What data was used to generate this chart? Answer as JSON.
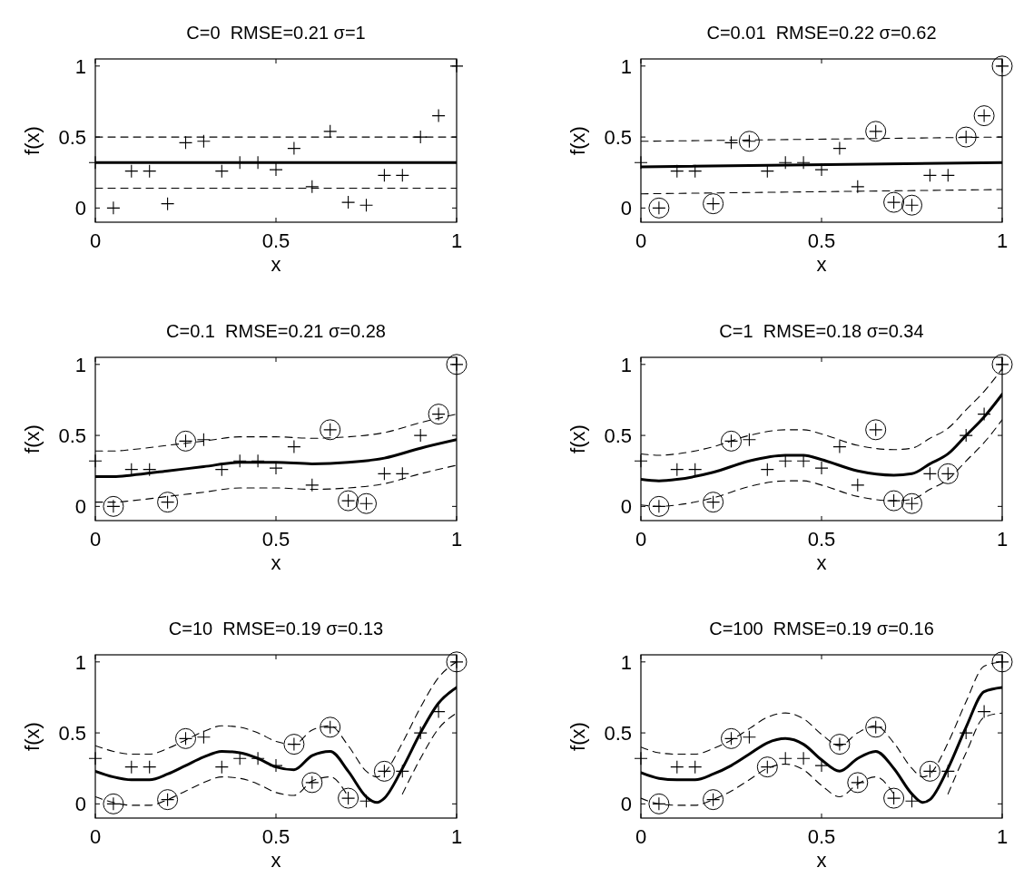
{
  "chart_data": [
    {
      "type": "line",
      "title": "C=0  RMSE=0.21 σ=1",
      "xlabel": "x",
      "ylabel": "f(x)",
      "xlim": [
        0,
        1
      ],
      "ylim": [
        -0.1,
        1.05
      ],
      "xticks": [
        0,
        0.5,
        1
      ],
      "yticks": [
        0,
        0.5,
        1
      ],
      "series": [
        {
          "type": "scatter",
          "marker": "cross",
          "color": "#000000",
          "x": [
            0,
            0.05,
            0.1,
            0.15,
            0.2,
            0.25,
            0.3,
            0.35,
            0.4,
            0.45,
            0.5,
            0.55,
            0.6,
            0.65,
            0.7,
            0.75,
            0.8,
            0.85,
            0.9,
            0.95,
            1
          ],
          "values": [
            0.32,
            0.0,
            0.26,
            0.26,
            0.03,
            0.46,
            0.47,
            0.26,
            0.32,
            0.32,
            0.27,
            0.42,
            0.15,
            0.54,
            0.04,
            0.02,
            0.23,
            0.23,
            0.5,
            0.65,
            1.0
          ]
        },
        {
          "type": "line",
          "line_style": "solid",
          "color": "#000000",
          "x": [
            0,
            1
          ],
          "values": [
            0.32,
            0.32
          ]
        },
        {
          "type": "line",
          "line_style": "dashed",
          "color": "#000000",
          "x": [
            0,
            1
          ],
          "values": [
            0.5,
            0.5
          ]
        },
        {
          "type": "line",
          "line_style": "dashed",
          "color": "#000000",
          "x": [
            0,
            1
          ],
          "values": [
            0.14,
            0.14
          ]
        }
      ]
    },
    {
      "type": "line",
      "title": "C=0.01  RMSE=0.22 σ=0.62",
      "xlabel": "x",
      "ylabel": "f(x)",
      "xlim": [
        0,
        1
      ],
      "ylim": [
        -0.1,
        1.05
      ],
      "xticks": [
        0,
        0.5,
        1
      ],
      "yticks": [
        0,
        0.5,
        1
      ],
      "series": [
        {
          "type": "scatter",
          "marker": "cross",
          "color": "#000000",
          "x": [
            0,
            0.05,
            0.1,
            0.15,
            0.2,
            0.25,
            0.3,
            0.35,
            0.4,
            0.45,
            0.5,
            0.55,
            0.6,
            0.65,
            0.7,
            0.75,
            0.8,
            0.85,
            0.9,
            0.95,
            1
          ],
          "values": [
            0.32,
            0.0,
            0.26,
            0.26,
            0.03,
            0.46,
            0.47,
            0.26,
            0.32,
            0.32,
            0.27,
            0.42,
            0.15,
            0.54,
            0.04,
            0.02,
            0.23,
            0.23,
            0.5,
            0.65,
            1.0
          ]
        },
        {
          "type": "scatter",
          "marker": "circle",
          "color": "#000000",
          "x": [
            0.05,
            0.2,
            0.3,
            0.65,
            0.7,
            0.75,
            0.9,
            0.95,
            1
          ],
          "values": [
            0.0,
            0.03,
            0.47,
            0.54,
            0.04,
            0.02,
            0.5,
            0.65,
            1.0
          ]
        },
        {
          "type": "line",
          "line_style": "solid",
          "color": "#000000",
          "x": [
            0,
            1
          ],
          "values": [
            0.29,
            0.32
          ]
        },
        {
          "type": "line",
          "line_style": "dashed",
          "color": "#000000",
          "x": [
            0,
            1
          ],
          "values": [
            0.47,
            0.5
          ]
        },
        {
          "type": "line",
          "line_style": "dashed",
          "color": "#000000",
          "x": [
            0,
            1
          ],
          "values": [
            0.1,
            0.13
          ]
        }
      ]
    },
    {
      "type": "line",
      "title": "C=0.1  RMSE=0.21 σ=0.28",
      "xlabel": "x",
      "ylabel": "f(x)",
      "xlim": [
        0,
        1
      ],
      "ylim": [
        -0.1,
        1.05
      ],
      "xticks": [
        0,
        0.5,
        1
      ],
      "yticks": [
        0,
        0.5,
        1
      ],
      "series": [
        {
          "type": "scatter",
          "marker": "cross",
          "color": "#000000",
          "x": [
            0,
            0.05,
            0.1,
            0.15,
            0.2,
            0.25,
            0.3,
            0.35,
            0.4,
            0.45,
            0.5,
            0.55,
            0.6,
            0.65,
            0.7,
            0.75,
            0.8,
            0.85,
            0.9,
            0.95,
            1
          ],
          "values": [
            0.32,
            0.0,
            0.26,
            0.26,
            0.03,
            0.46,
            0.47,
            0.26,
            0.32,
            0.32,
            0.27,
            0.42,
            0.15,
            0.54,
            0.04,
            0.02,
            0.23,
            0.23,
            0.5,
            0.65,
            1.0
          ]
        },
        {
          "type": "scatter",
          "marker": "circle",
          "color": "#000000",
          "x": [
            0.05,
            0.2,
            0.25,
            0.65,
            0.7,
            0.75,
            0.95,
            1
          ],
          "values": [
            0.0,
            0.03,
            0.46,
            0.54,
            0.04,
            0.02,
            0.65,
            1.0
          ]
        },
        {
          "type": "line",
          "line_style": "solid",
          "color": "#000000",
          "x": [
            0,
            0.05,
            0.1,
            0.2,
            0.3,
            0.4,
            0.5,
            0.6,
            0.7,
            0.8,
            0.9,
            1
          ],
          "values": [
            0.21,
            0.21,
            0.22,
            0.25,
            0.28,
            0.31,
            0.31,
            0.3,
            0.31,
            0.34,
            0.41,
            0.47
          ]
        },
        {
          "type": "line",
          "line_style": "dashed",
          "color": "#000000",
          "x": [
            0,
            0.05,
            0.1,
            0.2,
            0.3,
            0.4,
            0.5,
            0.6,
            0.7,
            0.8,
            0.9,
            1
          ],
          "values": [
            0.39,
            0.39,
            0.4,
            0.43,
            0.46,
            0.49,
            0.49,
            0.48,
            0.49,
            0.52,
            0.59,
            0.65
          ]
        },
        {
          "type": "line",
          "line_style": "dashed",
          "color": "#000000",
          "x": [
            0,
            0.05,
            0.1,
            0.2,
            0.3,
            0.4,
            0.5,
            0.6,
            0.7,
            0.8,
            0.9,
            1
          ],
          "values": [
            0.03,
            0.03,
            0.04,
            0.07,
            0.1,
            0.13,
            0.13,
            0.12,
            0.13,
            0.16,
            0.23,
            0.29
          ]
        }
      ]
    },
    {
      "type": "line",
      "title": "C=1  RMSE=0.18 σ=0.34",
      "xlabel": "x",
      "ylabel": "f(x)",
      "xlim": [
        0,
        1
      ],
      "ylim": [
        -0.1,
        1.05
      ],
      "xticks": [
        0,
        0.5,
        1
      ],
      "yticks": [
        0,
        0.5,
        1
      ],
      "series": [
        {
          "type": "scatter",
          "marker": "cross",
          "color": "#000000",
          "x": [
            0,
            0.05,
            0.1,
            0.15,
            0.2,
            0.25,
            0.3,
            0.35,
            0.4,
            0.45,
            0.5,
            0.55,
            0.6,
            0.65,
            0.7,
            0.75,
            0.8,
            0.85,
            0.9,
            0.95,
            1
          ],
          "values": [
            0.32,
            0.0,
            0.26,
            0.26,
            0.03,
            0.46,
            0.47,
            0.26,
            0.32,
            0.32,
            0.27,
            0.42,
            0.15,
            0.54,
            0.04,
            0.02,
            0.23,
            0.23,
            0.5,
            0.65,
            1.0
          ]
        },
        {
          "type": "scatter",
          "marker": "circle",
          "color": "#000000",
          "x": [
            0.05,
            0.2,
            0.25,
            0.65,
            0.7,
            0.75,
            0.85,
            1
          ],
          "values": [
            0.0,
            0.03,
            0.46,
            0.54,
            0.04,
            0.02,
            0.23,
            1.0
          ]
        },
        {
          "type": "line",
          "line_style": "solid",
          "color": "#000000",
          "x": [
            0,
            0.05,
            0.1,
            0.2,
            0.3,
            0.4,
            0.45,
            0.5,
            0.6,
            0.7,
            0.75,
            0.8,
            0.85,
            0.9,
            0.95,
            1
          ],
          "values": [
            0.19,
            0.18,
            0.19,
            0.24,
            0.32,
            0.36,
            0.36,
            0.33,
            0.25,
            0.22,
            0.23,
            0.3,
            0.37,
            0.5,
            0.63,
            0.79
          ]
        },
        {
          "type": "line",
          "line_style": "dashed",
          "color": "#000000",
          "x": [
            0,
            0.05,
            0.1,
            0.2,
            0.3,
            0.4,
            0.45,
            0.5,
            0.6,
            0.7,
            0.75,
            0.8,
            0.85,
            0.9,
            0.95,
            1
          ],
          "values": [
            0.37,
            0.36,
            0.37,
            0.42,
            0.5,
            0.54,
            0.54,
            0.51,
            0.43,
            0.4,
            0.41,
            0.48,
            0.55,
            0.68,
            0.81,
            0.97
          ]
        },
        {
          "type": "line",
          "line_style": "dashed",
          "color": "#000000",
          "x": [
            0,
            0.05,
            0.1,
            0.2,
            0.3,
            0.4,
            0.45,
            0.5,
            0.6,
            0.7,
            0.75,
            0.8,
            0.85,
            0.9,
            0.95,
            1
          ],
          "values": [
            0.01,
            0.0,
            0.01,
            0.06,
            0.14,
            0.18,
            0.18,
            0.15,
            0.07,
            0.04,
            0.05,
            0.12,
            0.19,
            0.32,
            0.45,
            0.61
          ]
        }
      ]
    },
    {
      "type": "line",
      "title": "C=10  RMSE=0.19 σ=0.13",
      "xlabel": "x",
      "ylabel": "f(x)",
      "xlim": [
        0,
        1
      ],
      "ylim": [
        -0.1,
        1.05
      ],
      "xticks": [
        0,
        0.5,
        1
      ],
      "yticks": [
        0,
        0.5,
        1
      ],
      "series": [
        {
          "type": "scatter",
          "marker": "cross",
          "color": "#000000",
          "x": [
            0,
            0.05,
            0.1,
            0.15,
            0.2,
            0.25,
            0.3,
            0.35,
            0.4,
            0.45,
            0.5,
            0.55,
            0.6,
            0.65,
            0.7,
            0.75,
            0.8,
            0.85,
            0.9,
            0.95,
            1
          ],
          "values": [
            0.32,
            0.0,
            0.26,
            0.26,
            0.03,
            0.46,
            0.47,
            0.26,
            0.32,
            0.32,
            0.27,
            0.42,
            0.15,
            0.54,
            0.04,
            0.02,
            0.23,
            0.23,
            0.5,
            0.65,
            1.0
          ]
        },
        {
          "type": "scatter",
          "marker": "circle",
          "color": "#000000",
          "x": [
            0.05,
            0.2,
            0.25,
            0.55,
            0.6,
            0.65,
            0.7,
            0.8,
            1
          ],
          "values": [
            0.0,
            0.03,
            0.46,
            0.42,
            0.15,
            0.54,
            0.04,
            0.23,
            1.0
          ]
        },
        {
          "type": "line",
          "line_style": "solid",
          "color": "#000000",
          "x": [
            0,
            0.05,
            0.1,
            0.15,
            0.2,
            0.25,
            0.3,
            0.35,
            0.4,
            0.45,
            0.5,
            0.55,
            0.6,
            0.65,
            0.7,
            0.75,
            0.78,
            0.8,
            0.85,
            0.9,
            0.95,
            1
          ],
          "values": [
            0.23,
            0.19,
            0.17,
            0.17,
            0.21,
            0.27,
            0.33,
            0.37,
            0.36,
            0.32,
            0.26,
            0.24,
            0.34,
            0.37,
            0.23,
            0.05,
            0.01,
            0.04,
            0.25,
            0.5,
            0.71,
            0.82
          ]
        },
        {
          "type": "line",
          "line_style": "dashed",
          "color": "#000000",
          "x": [
            0,
            0.05,
            0.1,
            0.15,
            0.2,
            0.25,
            0.3,
            0.35,
            0.4,
            0.45,
            0.5,
            0.55,
            0.6,
            0.65,
            0.7,
            0.75,
            0.78,
            0.8,
            0.85,
            0.9,
            0.95,
            1
          ],
          "values": [
            0.41,
            0.37,
            0.35,
            0.35,
            0.39,
            0.45,
            0.51,
            0.55,
            0.54,
            0.5,
            0.44,
            0.42,
            0.52,
            0.55,
            0.41,
            0.23,
            0.19,
            0.22,
            0.43,
            0.68,
            0.89,
            1.0
          ]
        },
        {
          "type": "line",
          "line_style": "dashed",
          "color": "#000000",
          "x": [
            0,
            0.05,
            0.1,
            0.15,
            0.2,
            0.25,
            0.3,
            0.35,
            0.4,
            0.45,
            0.5,
            0.55,
            0.6,
            0.65,
            0.7,
            0.75,
            0.78,
            0.8,
            0.85,
            0.9,
            0.95,
            1
          ],
          "values": [
            0.05,
            0.01,
            -0.01,
            -0.01,
            0.03,
            0.09,
            0.15,
            0.19,
            0.18,
            0.14,
            0.08,
            0.06,
            0.16,
            0.19,
            0.05,
            null,
            null,
            null,
            0.07,
            0.32,
            0.53,
            0.64
          ]
        }
      ]
    },
    {
      "type": "line",
      "title": "C=100  RMSE=0.19 σ=0.16",
      "xlabel": "x",
      "ylabel": "f(x)",
      "xlim": [
        0,
        1
      ],
      "ylim": [
        -0.1,
        1.05
      ],
      "xticks": [
        0,
        0.5,
        1
      ],
      "yticks": [
        0,
        0.5,
        1
      ],
      "series": [
        {
          "type": "scatter",
          "marker": "cross",
          "color": "#000000",
          "x": [
            0,
            0.05,
            0.1,
            0.15,
            0.2,
            0.25,
            0.3,
            0.35,
            0.4,
            0.45,
            0.5,
            0.55,
            0.6,
            0.65,
            0.7,
            0.75,
            0.8,
            0.85,
            0.9,
            0.95,
            1
          ],
          "values": [
            0.32,
            0.0,
            0.26,
            0.26,
            0.03,
            0.46,
            0.47,
            0.26,
            0.32,
            0.32,
            0.27,
            0.42,
            0.15,
            0.54,
            0.04,
            0.02,
            0.23,
            0.23,
            0.5,
            0.65,
            1.0
          ]
        },
        {
          "type": "scatter",
          "marker": "circle",
          "color": "#000000",
          "x": [
            0.05,
            0.2,
            0.25,
            0.35,
            0.55,
            0.6,
            0.65,
            0.7,
            0.8,
            1
          ],
          "values": [
            0.0,
            0.03,
            0.46,
            0.26,
            0.42,
            0.15,
            0.54,
            0.04,
            0.23,
            1.0
          ]
        },
        {
          "type": "line",
          "line_style": "solid",
          "color": "#000000",
          "x": [
            0,
            0.05,
            0.1,
            0.15,
            0.2,
            0.25,
            0.3,
            0.35,
            0.4,
            0.45,
            0.5,
            0.55,
            0.6,
            0.65,
            0.7,
            0.75,
            0.78,
            0.8,
            0.85,
            0.9,
            0.95,
            1
          ],
          "values": [
            0.22,
            0.18,
            0.17,
            0.17,
            0.21,
            0.27,
            0.35,
            0.43,
            0.46,
            0.42,
            0.31,
            0.23,
            0.32,
            0.37,
            0.25,
            0.07,
            0.01,
            0.03,
            0.25,
            0.54,
            0.79,
            0.82
          ]
        },
        {
          "type": "line",
          "line_style": "dashed",
          "color": "#000000",
          "x": [
            0,
            0.05,
            0.1,
            0.15,
            0.2,
            0.25,
            0.3,
            0.35,
            0.4,
            0.45,
            0.5,
            0.55,
            0.6,
            0.65,
            0.7,
            0.75,
            0.78,
            0.8,
            0.85,
            0.9,
            0.95,
            1
          ],
          "values": [
            0.4,
            0.36,
            0.35,
            0.35,
            0.39,
            0.45,
            0.53,
            0.61,
            0.64,
            0.6,
            0.49,
            0.41,
            0.5,
            0.55,
            0.43,
            0.25,
            0.19,
            0.21,
            0.43,
            0.72,
            0.97,
            1.0
          ]
        },
        {
          "type": "line",
          "line_style": "dashed",
          "color": "#000000",
          "x": [
            0,
            0.05,
            0.1,
            0.15,
            0.2,
            0.25,
            0.3,
            0.35,
            0.4,
            0.45,
            0.5,
            0.55,
            0.6,
            0.65,
            0.7,
            0.75,
            0.78,
            0.8,
            0.85,
            0.9,
            0.95,
            1
          ],
          "values": [
            0.04,
            0.0,
            -0.01,
            -0.01,
            0.03,
            0.09,
            0.17,
            0.25,
            0.28,
            0.24,
            0.13,
            0.05,
            0.14,
            0.19,
            0.07,
            null,
            null,
            null,
            0.07,
            0.36,
            0.61,
            0.64
          ]
        }
      ]
    }
  ]
}
